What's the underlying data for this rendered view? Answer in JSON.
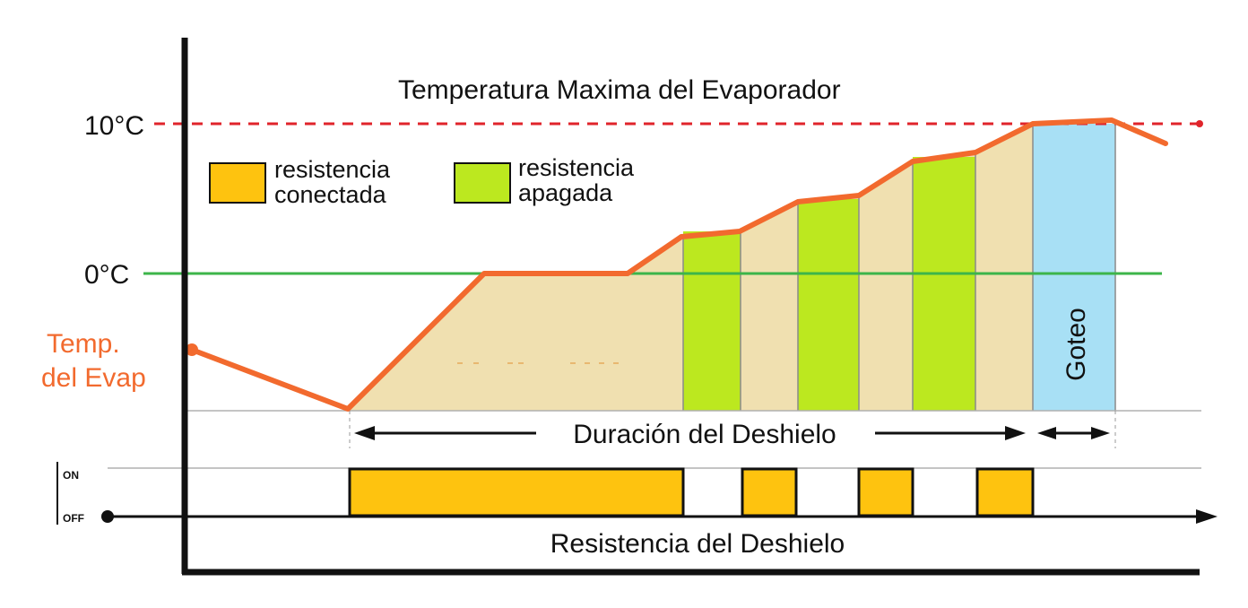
{
  "title": "Temperatura Maxima del Evaporador",
  "y_labels": {
    "max": "10°C",
    "zero": "0°C"
  },
  "temp_label": [
    "Temp.",
    "del Evap"
  ],
  "legend": [
    {
      "lines": [
        "resistencia",
        "conectada"
      ],
      "color": "#fec30f"
    },
    {
      "lines": [
        "resistencia",
        "apagada"
      ],
      "color": "#bce81f"
    }
  ],
  "drip_label": "Goteo",
  "duration_label": "Duración del Deshielo",
  "heater_label": "Resistencia del Deshielo",
  "state_labels": {
    "on": "ON",
    "off": "OFF"
  },
  "colors": {
    "heater_on": "#fec30f",
    "heater_off": "#bce81f",
    "drip": "#a8e0f5",
    "fill_area": "#f0e0b0",
    "temp_curve": "#f26a2e",
    "max_line": "#e0242b",
    "zero_line": "#3cb54a"
  }
}
